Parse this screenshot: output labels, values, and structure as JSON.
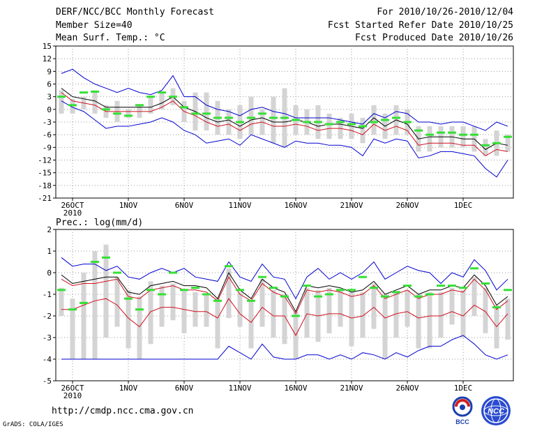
{
  "header": {
    "title": "DERF/NCC/BCC Monthly Forecast",
    "member_size": "Member Size=40",
    "variable": "Mean Surf. Temp.: °C",
    "period": "For 2010/10/26-2010/12/04",
    "start_date": "Fcst Started Refer Date 2010/10/25",
    "produced_date": "Fcst Produced Date 2010/10/26"
  },
  "footer": {
    "url": "http://cmdp.ncc.cma.gov.cn",
    "grads": "GrADS: COLA/IGES",
    "logo_bcc_text": "BCC",
    "logo_ncc_text": "NCC"
  },
  "colors": {
    "max_line": "#0000d0",
    "min_line": "#0000d0",
    "mean_line": "#000000",
    "lower_line": "#d01020",
    "box": "#d4d4d4",
    "obs": "#33e033",
    "grid": "#999999"
  },
  "chart_data": [
    {
      "type": "line",
      "title": "Mean Surf. Temp.: °C",
      "ylim": [
        -21,
        15
      ],
      "yticks": [
        15,
        12,
        9,
        6,
        3,
        0,
        -3,
        -6,
        -9,
        -12,
        -15,
        -18,
        -21
      ],
      "xlim": [
        0,
        40
      ],
      "xticks": [
        {
          "pos": 1,
          "label": "26OCT"
        },
        {
          "pos": 6,
          "label": "1NOV"
        },
        {
          "pos": 11,
          "label": "6NOV"
        },
        {
          "pos": 16,
          "label": "11NOV"
        },
        {
          "pos": 21,
          "label": "16NOV"
        },
        {
          "pos": 26,
          "label": "21NOV"
        },
        {
          "pos": 31,
          "label": "26NOV"
        },
        {
          "pos": 36,
          "label": "1DEC"
        }
      ],
      "year_label": "2010",
      "series": [
        {
          "name": "max",
          "values": [
            8.5,
            9.5,
            7.5,
            6,
            5,
            4,
            5,
            4,
            3.5,
            4.5,
            8,
            3,
            3,
            1,
            0,
            -0.5,
            -1.5,
            0,
            0.5,
            -0.5,
            -1,
            -2,
            -2,
            -2,
            -2,
            -2.5,
            -3,
            -3.5,
            -1,
            -2,
            -0.5,
            -1,
            -3,
            -3,
            -3.5,
            -3,
            -3,
            -4,
            -5,
            -3,
            -4
          ]
        },
        {
          "name": "mean",
          "values": [
            5,
            3,
            2.5,
            2,
            0.5,
            0.5,
            0.5,
            0.5,
            0.5,
            1.5,
            3,
            0.5,
            -0.5,
            -2,
            -3,
            -2.5,
            -4,
            -2.5,
            -2,
            -3,
            -3,
            -2.5,
            -3,
            -4,
            -3.5,
            -3.5,
            -4,
            -4.5,
            -2,
            -4,
            -2.5,
            -3.5,
            -7,
            -6.5,
            -6.5,
            -6.5,
            -7,
            -7,
            -9.5,
            -8,
            -8.5
          ]
        },
        {
          "name": "lower",
          "values": [
            4,
            2,
            1.5,
            1,
            -0.5,
            -0.5,
            -0.5,
            -0.5,
            -0.5,
            0.5,
            2,
            -0.5,
            -1.5,
            -3,
            -4,
            -3.5,
            -5,
            -3.5,
            -3,
            -4,
            -4,
            -3.5,
            -4,
            -5,
            -4.5,
            -4.5,
            -5,
            -6,
            -3.5,
            -5,
            -4,
            -5,
            -8.5,
            -8,
            -8,
            -8,
            -8.5,
            -8.5,
            -11,
            -9.5,
            -10
          ]
        },
        {
          "name": "min",
          "values": [
            2,
            0.5,
            -0.5,
            -2.5,
            -4.5,
            -4,
            -4,
            -3.5,
            -3,
            -2,
            -3,
            -5,
            -6,
            -8,
            -7.5,
            -7,
            -8.5,
            -6,
            -7,
            -8,
            -9,
            -7.5,
            -8,
            -8,
            -8.5,
            -8.5,
            -9,
            -11,
            -7,
            -8,
            -7,
            -7.5,
            -11.5,
            -11,
            -10,
            -10,
            -10.5,
            -11,
            -14,
            -16,
            -12
          ]
        },
        {
          "name": "box_top",
          "values": [
            4.5,
            2.5,
            3,
            4.5,
            1,
            2,
            0,
            1,
            3,
            4,
            5,
            2,
            4,
            4,
            2,
            0,
            1,
            3,
            0,
            3,
            5,
            1,
            0,
            1,
            -1,
            -2,
            -1,
            -2,
            1,
            -1,
            1,
            0,
            -4,
            -4,
            -4,
            -4,
            -4,
            -4,
            -7,
            -5,
            -6
          ]
        },
        {
          "name": "box_bottom",
          "values": [
            -1,
            -1,
            0,
            -1,
            -2,
            -3,
            -2,
            -2,
            -1,
            0,
            1,
            -3,
            -5,
            -5,
            -6,
            -6,
            -7,
            -6,
            -6,
            -8,
            -9,
            -6,
            -6,
            -7,
            -7,
            -7,
            -7,
            -8,
            -6,
            -7,
            -6,
            -6,
            -10,
            -10,
            -9,
            -9,
            -9,
            -10,
            -11,
            -11,
            -10
          ]
        },
        {
          "name": "obs",
          "values": [
            3,
            1,
            4,
            4.2,
            0,
            -1,
            -1.5,
            1,
            3,
            4,
            3,
            0.5,
            -1,
            -1,
            -2,
            -2,
            -3,
            -2,
            -1,
            -2,
            -2,
            -2.5,
            -3,
            -3,
            -3.5,
            -3,
            -3.5,
            -4,
            -3,
            -2.5,
            -2,
            -3,
            -5,
            -6,
            -5.5,
            -5.5,
            -6,
            -6,
            -8.5,
            -8,
            -6.5
          ]
        }
      ]
    },
    {
      "type": "line",
      "title": "Prec.: log(mm/d)",
      "ylim": [
        -5,
        2
      ],
      "yticks": [
        2,
        1,
        0,
        -1,
        -2,
        -3,
        -4,
        -5
      ],
      "xlim": [
        0,
        40
      ],
      "xticks": [
        {
          "pos": 1,
          "label": "26OCT"
        },
        {
          "pos": 6,
          "label": "1NOV"
        },
        {
          "pos": 11,
          "label": "6NOV"
        },
        {
          "pos": 16,
          "label": "11NOV"
        },
        {
          "pos": 21,
          "label": "16NOV"
        },
        {
          "pos": 26,
          "label": "21NOV"
        },
        {
          "pos": 31,
          "label": "26NOV"
        },
        {
          "pos": 36,
          "label": "1DEC"
        }
      ],
      "year_label": "2010",
      "series": [
        {
          "name": "max",
          "values": [
            0.7,
            0.3,
            0.4,
            0.4,
            0.1,
            0.3,
            -0.2,
            -0.3,
            0,
            0.2,
            0,
            0.2,
            -0.2,
            -0.3,
            -0.4,
            0.5,
            -0.2,
            -0.4,
            0.4,
            -0.2,
            -0.3,
            -1.2,
            -0.2,
            0.2,
            -0.3,
            0,
            -0.3,
            0,
            0.5,
            -0.3,
            0,
            0.3,
            0.1,
            0,
            -0.5,
            0,
            -0.2,
            0.6,
            0.1,
            -0.8,
            -0.3
          ]
        },
        {
          "name": "mean",
          "values": [
            -0.1,
            -0.5,
            -0.4,
            -0.3,
            -0.2,
            -0.2,
            -0.9,
            -1,
            -0.6,
            -0.5,
            -0.4,
            -0.6,
            -0.6,
            -0.7,
            -1.2,
            0,
            -0.8,
            -1.2,
            -0.3,
            -0.7,
            -0.9,
            -1.8,
            -0.6,
            -0.7,
            -0.6,
            -0.7,
            -0.9,
            -0.8,
            -0.4,
            -1,
            -0.8,
            -0.6,
            -1,
            -0.8,
            -0.8,
            -0.6,
            -0.7,
            -0.1,
            -0.6,
            -1.5,
            -1.1
          ]
        },
        {
          "name": "lower",
          "values": [
            -0.3,
            -0.6,
            -0.5,
            -0.5,
            -0.4,
            -0.3,
            -1.1,
            -1.2,
            -0.8,
            -0.7,
            -0.6,
            -0.8,
            -0.8,
            -0.9,
            -1.3,
            -0.2,
            -1,
            -1.3,
            -0.5,
            -0.9,
            -1.1,
            -1.9,
            -0.8,
            -0.9,
            -0.8,
            -0.9,
            -1.1,
            -1,
            -0.6,
            -1.2,
            -1,
            -0.8,
            -1.2,
            -1,
            -1,
            -0.8,
            -0.9,
            -0.3,
            -0.8,
            -1.7,
            -1.3
          ]
        },
        {
          "name": "min_red",
          "values": [
            -1.7,
            -1.7,
            -1.5,
            -1.3,
            -1.2,
            -1.5,
            -2.1,
            -2.5,
            -1.8,
            -1.6,
            -1.6,
            -1.7,
            -1.8,
            -1.8,
            -2.1,
            -1.2,
            -1.9,
            -2.3,
            -1.6,
            -2,
            -2,
            -2.9,
            -1.9,
            -2,
            -1.9,
            -1.9,
            -2.1,
            -2,
            -1.6,
            -2.1,
            -1.9,
            -1.8,
            -2.1,
            -2,
            -2,
            -1.8,
            -2,
            -1.5,
            -1.8,
            -2.5,
            -1.9
          ]
        },
        {
          "name": "min",
          "values": [
            -4,
            -4,
            -4,
            -4,
            -4,
            -4,
            -4,
            -4,
            -4,
            -4,
            -4,
            -4,
            -4,
            -4,
            -4,
            -3.4,
            -3.7,
            -4,
            -3.3,
            -3.9,
            -4,
            -4,
            -3.8,
            -3.8,
            -4,
            -3.8,
            -4,
            -3.7,
            -3.8,
            -4,
            -3.7,
            -3.9,
            -3.6,
            -3.4,
            -3.4,
            -3.1,
            -2.9,
            -3.3,
            -3.8,
            -4,
            -3.8
          ]
        },
        {
          "name": "box_top",
          "values": [
            -0.7,
            -1.2,
            0,
            1,
            1.3,
            -0.2,
            -0.8,
            -1.1,
            -0.4,
            -0.6,
            -0.5,
            -0.8,
            -0.9,
            -1,
            -1.2,
            0.2,
            -0.9,
            -1.3,
            -0.3,
            -0.8,
            -1,
            -1.8,
            -0.7,
            -0.8,
            -0.7,
            -0.8,
            -0.9,
            -0.9,
            -0.5,
            -1,
            -0.9,
            -0.8,
            -1,
            -0.9,
            -0.9,
            -0.7,
            -0.8,
            -0.2,
            -0.7,
            -1.5,
            -1.2
          ]
        },
        {
          "name": "box_bottom",
          "values": [
            -2,
            -4,
            -4,
            -4,
            -3,
            -2.5,
            -3.5,
            -4,
            -3.3,
            -2.5,
            -2.2,
            -2.8,
            -2.5,
            -2.5,
            -3.5,
            -2.1,
            -2.5,
            -3.5,
            -2.5,
            -3,
            -3.3,
            -4,
            -3,
            -3.2,
            -2.8,
            -2.5,
            -3.4,
            -3,
            -2.6,
            -4,
            -3,
            -2.5,
            -3.5,
            -3.5,
            -3,
            -2.4,
            -3,
            -2,
            -2.8,
            -3.5,
            -3.1
          ]
        },
        {
          "name": "obs",
          "values": [
            -0.8,
            -1.7,
            -1.4,
            0.5,
            0.7,
            0,
            -1.2,
            -1.7,
            -0.8,
            -1,
            0,
            -0.8,
            -0.7,
            -1,
            -1.3,
            0.3,
            -0.8,
            -1.3,
            -0.2,
            -0.7,
            -1.1,
            -2,
            -0.6,
            -1.1,
            -1,
            -0.8,
            -0.8,
            -0.2,
            -0.7,
            -1.1,
            -0.9,
            -0.6,
            -1.1,
            -1,
            -0.6,
            -0.6,
            -0.7,
            0.2,
            -0.5,
            -1.6,
            -0.8
          ]
        }
      ]
    }
  ]
}
